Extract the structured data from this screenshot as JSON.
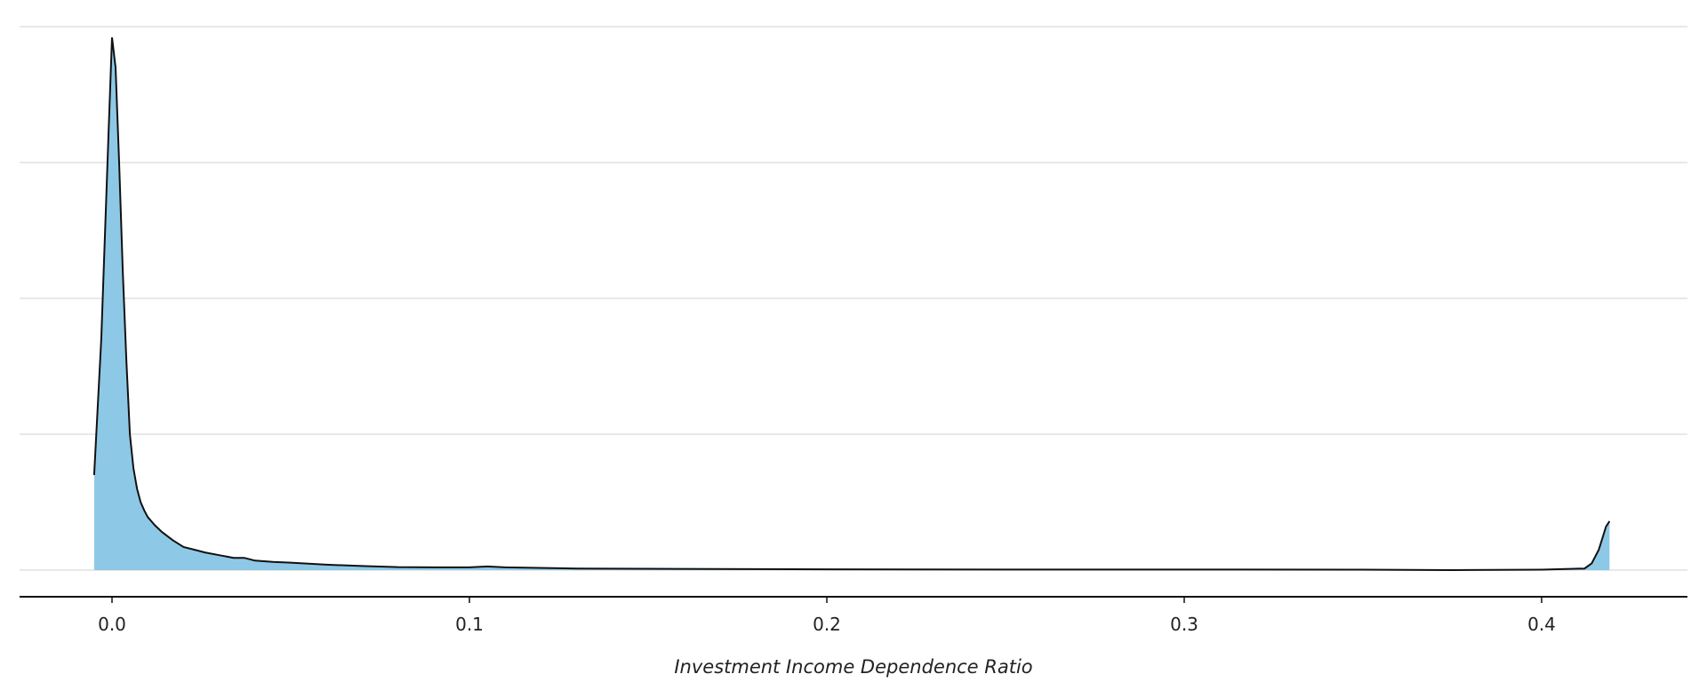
{
  "chart_data": {
    "type": "area",
    "xlabel": "Investment Income Dependence Ratio",
    "ylabel": "",
    "title": "",
    "xlim": [
      -0.025,
      0.44
    ],
    "ylim": [
      0,
      40
    ],
    "x_ticks": [
      0.0,
      0.1,
      0.2,
      0.3,
      0.4
    ],
    "x_tick_labels": [
      "0.0",
      "0.1",
      "0.2",
      "0.3",
      "0.4"
    ],
    "y_gridlines": [
      0,
      10,
      20,
      30,
      40
    ],
    "grid": "horizontal",
    "fill_color": "#8dc9e6",
    "line_color": "#111111",
    "series": [
      {
        "x": [
          -0.005,
          -0.003,
          -0.001,
          0.0,
          0.001,
          0.002,
          0.003,
          0.004,
          0.005,
          0.006,
          0.007,
          0.008,
          0.009,
          0.01,
          0.012,
          0.014,
          0.017,
          0.02,
          0.023,
          0.026,
          0.03,
          0.034,
          0.037,
          0.04,
          0.045,
          0.05,
          0.06,
          0.07,
          0.08,
          0.09,
          0.1,
          0.105,
          0.11,
          0.13,
          0.15,
          0.18,
          0.2,
          0.25,
          0.3,
          0.35,
          0.375,
          0.4,
          0.412,
          0.414,
          0.416,
          0.418,
          0.419
        ],
        "y": [
          7.0,
          17.0,
          32.0,
          39.2,
          37.0,
          30.0,
          22.0,
          15.5,
          10.0,
          7.5,
          6.0,
          5.0,
          4.4,
          3.9,
          3.3,
          2.8,
          2.2,
          1.7,
          1.5,
          1.3,
          1.1,
          0.9,
          0.9,
          0.7,
          0.6,
          0.55,
          0.4,
          0.3,
          0.22,
          0.2,
          0.2,
          0.27,
          0.2,
          0.12,
          0.1,
          0.07,
          0.06,
          0.04,
          0.04,
          0.03,
          0.0,
          0.03,
          0.12,
          0.5,
          1.5,
          3.2,
          3.6
        ]
      }
    ]
  }
}
